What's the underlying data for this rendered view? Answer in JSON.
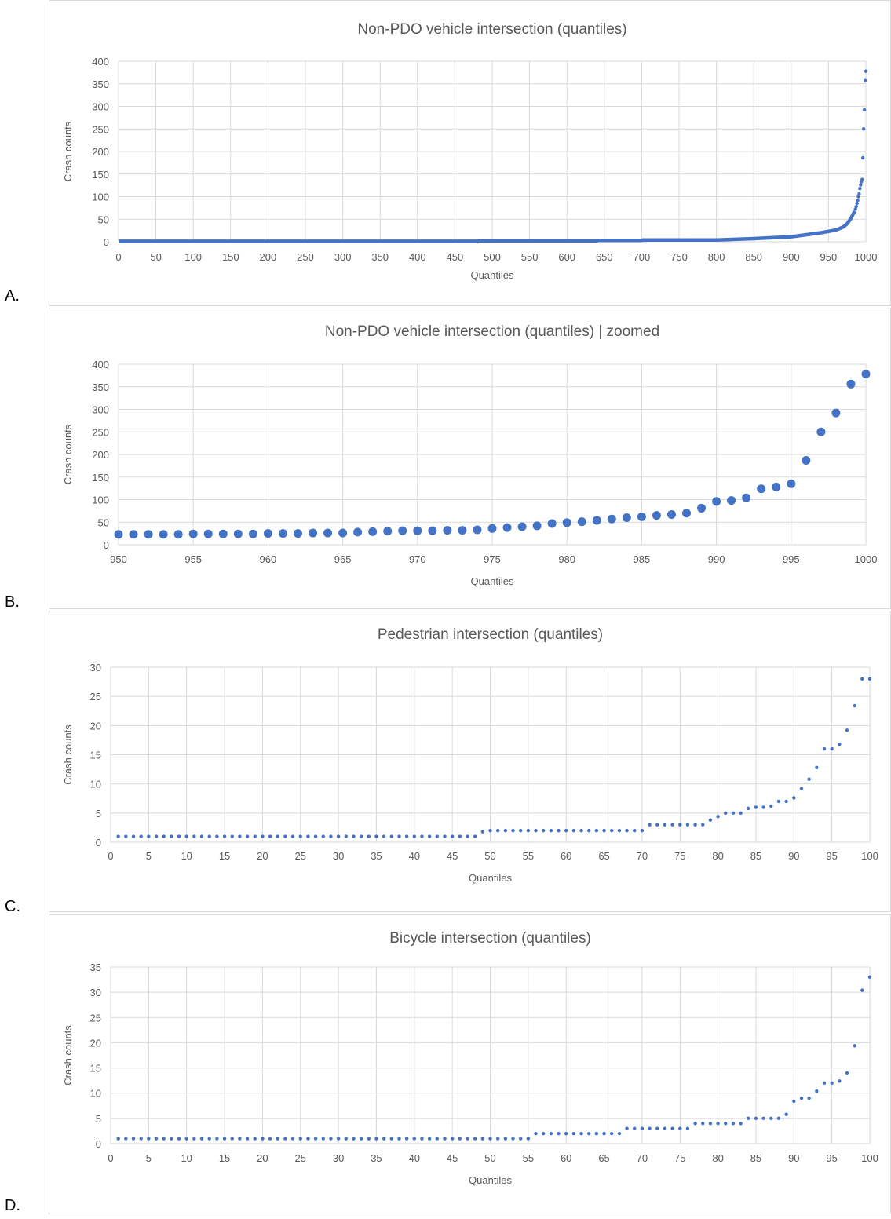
{
  "chart_data": [
    {
      "panel_label": "A.",
      "type": "scatter",
      "title": "Non-PDO vehicle intersection (quantiles)",
      "xlabel": "Quantiles",
      "ylabel": "Crash counts",
      "xlim": [
        0,
        1000
      ],
      "ylim": [
        0,
        400
      ],
      "xticks": [
        0,
        50,
        100,
        150,
        200,
        250,
        300,
        350,
        400,
        450,
        500,
        550,
        600,
        650,
        700,
        750,
        800,
        850,
        900,
        950,
        1000
      ],
      "yticks": [
        0,
        50,
        100,
        150,
        200,
        250,
        300,
        350,
        400
      ],
      "grid": true,
      "marker_size": "small",
      "curve_segments": [
        [
          0,
          1
        ],
        [
          480,
          1
        ],
        [
          482,
          2
        ],
        [
          640,
          2
        ],
        [
          642,
          3
        ],
        [
          700,
          3
        ],
        [
          702,
          4
        ],
        [
          800,
          4
        ],
        [
          850,
          7
        ],
        [
          900,
          11
        ],
        [
          940,
          20
        ],
        [
          960,
          26
        ],
        [
          970,
          33
        ],
        [
          975,
          40
        ],
        [
          980,
          52
        ],
        [
          985,
          68
        ]
      ],
      "points": [
        [
          986,
          72
        ],
        [
          987,
          78
        ],
        [
          988,
          85
        ],
        [
          989,
          92
        ],
        [
          990,
          100
        ],
        [
          991,
          106
        ],
        [
          992,
          118
        ],
        [
          993,
          126
        ],
        [
          994,
          133
        ],
        [
          995,
          138
        ],
        [
          996,
          186
        ],
        [
          997,
          250
        ],
        [
          998,
          292
        ],
        [
          999,
          357
        ],
        [
          1000,
          378
        ]
      ],
      "color": "#4472c4"
    },
    {
      "panel_label": "B.",
      "type": "scatter",
      "title": "Non-PDO vehicle intersection (quantiles)  | zoomed",
      "xlabel": "Quantiles",
      "ylabel": "Crash counts",
      "xlim": [
        950,
        1000
      ],
      "ylim": [
        0,
        400
      ],
      "xticks": [
        950,
        955,
        960,
        965,
        970,
        975,
        980,
        985,
        990,
        995,
        1000
      ],
      "yticks": [
        0,
        50,
        100,
        150,
        200,
        250,
        300,
        350,
        400
      ],
      "grid": true,
      "marker_size": "large",
      "x": [
        950,
        951,
        952,
        953,
        954,
        955,
        956,
        957,
        958,
        959,
        960,
        961,
        962,
        963,
        964,
        965,
        966,
        967,
        968,
        969,
        970,
        971,
        972,
        973,
        974,
        975,
        976,
        977,
        978,
        979,
        980,
        981,
        982,
        983,
        984,
        985,
        986,
        987,
        988,
        989,
        990,
        991,
        992,
        993,
        994,
        995,
        996,
        997,
        998,
        999,
        1000
      ],
      "y": [
        23,
        23,
        23,
        23,
        23,
        24,
        24,
        24,
        24,
        24,
        25,
        25,
        25,
        26,
        26,
        26,
        28,
        29,
        30,
        31,
        31,
        31,
        32,
        32,
        33,
        36,
        38,
        40,
        42,
        47,
        49,
        51,
        54,
        57,
        60,
        62,
        65,
        67,
        70,
        81,
        96,
        98,
        104,
        124,
        128,
        135,
        187,
        250,
        292,
        356,
        378
      ],
      "color": "#4472c4"
    },
    {
      "panel_label": "C.",
      "type": "scatter",
      "title": "Pedestrian  intersection (quantiles)",
      "xlabel": "Quantiles",
      "ylabel": "Crash counts",
      "xlim": [
        0,
        100
      ],
      "ylim": [
        0,
        30
      ],
      "xticks": [
        0,
        5,
        10,
        15,
        20,
        25,
        30,
        35,
        40,
        45,
        50,
        55,
        60,
        65,
        70,
        75,
        80,
        85,
        90,
        95,
        100
      ],
      "yticks": [
        0,
        5,
        10,
        15,
        20,
        25,
        30
      ],
      "grid": true,
      "marker_size": "small",
      "x": [
        1,
        2,
        3,
        4,
        5,
        6,
        7,
        8,
        9,
        10,
        11,
        12,
        13,
        14,
        15,
        16,
        17,
        18,
        19,
        20,
        21,
        22,
        23,
        24,
        25,
        26,
        27,
        28,
        29,
        30,
        31,
        32,
        33,
        34,
        35,
        36,
        37,
        38,
        39,
        40,
        41,
        42,
        43,
        44,
        45,
        46,
        47,
        48,
        49,
        50,
        51,
        52,
        53,
        54,
        55,
        56,
        57,
        58,
        59,
        60,
        61,
        62,
        63,
        64,
        65,
        66,
        67,
        68,
        69,
        70,
        71,
        72,
        73,
        74,
        75,
        76,
        77,
        78,
        79,
        80,
        81,
        82,
        83,
        84,
        85,
        86,
        87,
        88,
        89,
        90,
        91,
        92,
        93,
        94,
        95,
        96,
        97,
        98,
        99,
        100
      ],
      "y": [
        1,
        1,
        1,
        1,
        1,
        1,
        1,
        1,
        1,
        1,
        1,
        1,
        1,
        1,
        1,
        1,
        1,
        1,
        1,
        1,
        1,
        1,
        1,
        1,
        1,
        1,
        1,
        1,
        1,
        1,
        1,
        1,
        1,
        1,
        1,
        1,
        1,
        1,
        1,
        1,
        1,
        1,
        1,
        1,
        1,
        1,
        1,
        1,
        1.8,
        2,
        2,
        2,
        2,
        2,
        2,
        2,
        2,
        2,
        2,
        2,
        2,
        2,
        2,
        2,
        2,
        2,
        2,
        2,
        2,
        2,
        3,
        3,
        3,
        3,
        3,
        3,
        3,
        3,
        3.8,
        4.4,
        5,
        5,
        5,
        5.8,
        6,
        6,
        6.2,
        7,
        7,
        7.6,
        9.2,
        10.8,
        12.8,
        16,
        16,
        16.8,
        19.2,
        23.4,
        28,
        28
      ],
      "color": "#4472c4"
    },
    {
      "panel_label": "D.",
      "type": "scatter",
      "title": "Bicycle intersection (quantiles)",
      "xlabel": "Quantiles",
      "ylabel": "Crash counts",
      "xlim": [
        0,
        100
      ],
      "ylim": [
        0,
        35
      ],
      "xticks": [
        0,
        5,
        10,
        15,
        20,
        25,
        30,
        35,
        40,
        45,
        50,
        55,
        60,
        65,
        70,
        75,
        80,
        85,
        90,
        95,
        100
      ],
      "yticks": [
        0,
        5,
        10,
        15,
        20,
        25,
        30,
        35
      ],
      "grid": true,
      "marker_size": "small",
      "x": [
        1,
        2,
        3,
        4,
        5,
        6,
        7,
        8,
        9,
        10,
        11,
        12,
        13,
        14,
        15,
        16,
        17,
        18,
        19,
        20,
        21,
        22,
        23,
        24,
        25,
        26,
        27,
        28,
        29,
        30,
        31,
        32,
        33,
        34,
        35,
        36,
        37,
        38,
        39,
        40,
        41,
        42,
        43,
        44,
        45,
        46,
        47,
        48,
        49,
        50,
        51,
        52,
        53,
        54,
        55,
        56,
        57,
        58,
        59,
        60,
        61,
        62,
        63,
        64,
        65,
        66,
        67,
        68,
        69,
        70,
        71,
        72,
        73,
        74,
        75,
        76,
        77,
        78,
        79,
        80,
        81,
        82,
        83,
        84,
        85,
        86,
        87,
        88,
        89,
        90,
        91,
        92,
        93,
        94,
        95,
        96,
        97,
        98,
        99,
        100
      ],
      "y": [
        1,
        1,
        1,
        1,
        1,
        1,
        1,
        1,
        1,
        1,
        1,
        1,
        1,
        1,
        1,
        1,
        1,
        1,
        1,
        1,
        1,
        1,
        1,
        1,
        1,
        1,
        1,
        1,
        1,
        1,
        1,
        1,
        1,
        1,
        1,
        1,
        1,
        1,
        1,
        1,
        1,
        1,
        1,
        1,
        1,
        1,
        1,
        1,
        1,
        1,
        1,
        1,
        1,
        1,
        1,
        2,
        2,
        2,
        2,
        2,
        2,
        2,
        2,
        2,
        2,
        2,
        2,
        3,
        3,
        3,
        3,
        3,
        3,
        3,
        3,
        3,
        4,
        4,
        4,
        4,
        4,
        4,
        4,
        5,
        5,
        5,
        5,
        5,
        5.8,
        8.4,
        9,
        9,
        10.4,
        12,
        12,
        12.4,
        14,
        19.4,
        30.4,
        33
      ],
      "color": "#4472c4"
    }
  ]
}
